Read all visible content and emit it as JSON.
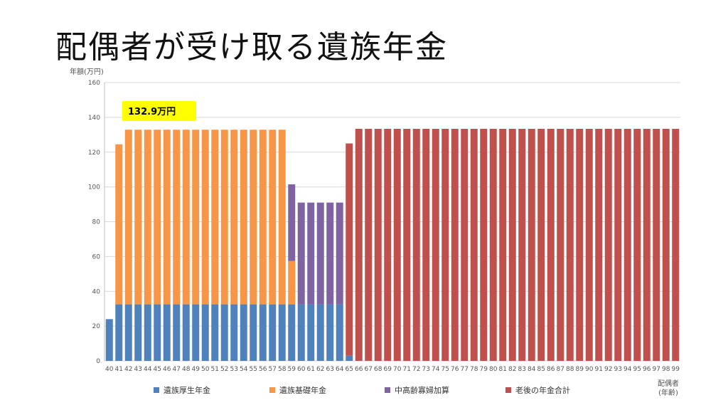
{
  "title": "配偶者が受け取る遺族年金",
  "chart_data": {
    "type": "bar",
    "stacked": true,
    "ylabel": "年額(万円)",
    "xlabel_line1": "配偶者",
    "xlabel_line2": "(年齢)",
    "ylim": [
      0,
      160
    ],
    "yticks": [
      0,
      20,
      40,
      60,
      80,
      100,
      120,
      140,
      160
    ],
    "grid": true,
    "legend_position": "bottom",
    "callout": {
      "text": "132.9万円",
      "color": "#ffff00"
    },
    "categories": [
      "40",
      "41",
      "42",
      "43",
      "44",
      "45",
      "46",
      "47",
      "48",
      "49",
      "50",
      "51",
      "52",
      "53",
      "54",
      "55",
      "56",
      "57",
      "58",
      "59",
      "60",
      "61",
      "62",
      "63",
      "64",
      "65",
      "66",
      "67",
      "68",
      "69",
      "70",
      "71",
      "72",
      "73",
      "74",
      "75",
      "76",
      "77",
      "78",
      "79",
      "80",
      "81",
      "82",
      "83",
      "84",
      "85",
      "86",
      "87",
      "88",
      "89",
      "90",
      "91",
      "92",
      "93",
      "94",
      "95",
      "96",
      "97",
      "98",
      "99"
    ],
    "series": [
      {
        "name": "遺族厚生年金",
        "color": "#4f81bd",
        "values": [
          24,
          32.5,
          32.5,
          32.5,
          32.5,
          32.5,
          32.5,
          32.5,
          32.5,
          32.5,
          32.5,
          32.5,
          32.5,
          32.5,
          32.5,
          32.5,
          32.5,
          32.5,
          32.5,
          32.5,
          32.5,
          32.5,
          32.5,
          32.5,
          32.5,
          3,
          0,
          0,
          0,
          0,
          0,
          0,
          0,
          0,
          0,
          0,
          0,
          0,
          0,
          0,
          0,
          0,
          0,
          0,
          0,
          0,
          0,
          0,
          0,
          0,
          0,
          0,
          0,
          0,
          0,
          0,
          0,
          0,
          0,
          0
        ]
      },
      {
        "name": "遺族基礎年金",
        "color": "#f79646",
        "values": [
          0,
          92,
          100.4,
          100.4,
          100.4,
          100.4,
          100.4,
          100.4,
          100.4,
          100.4,
          100.4,
          100.4,
          100.4,
          100.4,
          100.4,
          100.4,
          100.4,
          100.4,
          100.4,
          25,
          0,
          0,
          0,
          0,
          0,
          0,
          0,
          0,
          0,
          0,
          0,
          0,
          0,
          0,
          0,
          0,
          0,
          0,
          0,
          0,
          0,
          0,
          0,
          0,
          0,
          0,
          0,
          0,
          0,
          0,
          0,
          0,
          0,
          0,
          0,
          0,
          0,
          0,
          0,
          0
        ]
      },
      {
        "name": "中高齢寡婦加算",
        "color": "#8064a2",
        "values": [
          0,
          0,
          0,
          0,
          0,
          0,
          0,
          0,
          0,
          0,
          0,
          0,
          0,
          0,
          0,
          0,
          0,
          0,
          0,
          44,
          58.5,
          58.5,
          58.5,
          58.5,
          58.5,
          0,
          0,
          0,
          0,
          0,
          0,
          0,
          0,
          0,
          0,
          0,
          0,
          0,
          0,
          0,
          0,
          0,
          0,
          0,
          0,
          0,
          0,
          0,
          0,
          0,
          0,
          0,
          0,
          0,
          0,
          0,
          0,
          0,
          0,
          0
        ]
      },
      {
        "name": "老後の年金合計",
        "color": "#c0504d",
        "values": [
          0,
          0,
          0,
          0,
          0,
          0,
          0,
          0,
          0,
          0,
          0,
          0,
          0,
          0,
          0,
          0,
          0,
          0,
          0,
          0,
          0,
          0,
          0,
          0,
          0,
          122,
          133.4,
          133.4,
          133.4,
          133.4,
          133.4,
          133.4,
          133.4,
          133.4,
          133.4,
          133.4,
          133.4,
          133.4,
          133.4,
          133.4,
          133.4,
          133.4,
          133.4,
          133.4,
          133.4,
          133.4,
          133.4,
          133.4,
          133.4,
          133.4,
          133.4,
          133.4,
          133.4,
          133.4,
          133.4,
          133.4,
          133.4,
          133.4,
          133.4,
          133.4
        ]
      }
    ]
  }
}
